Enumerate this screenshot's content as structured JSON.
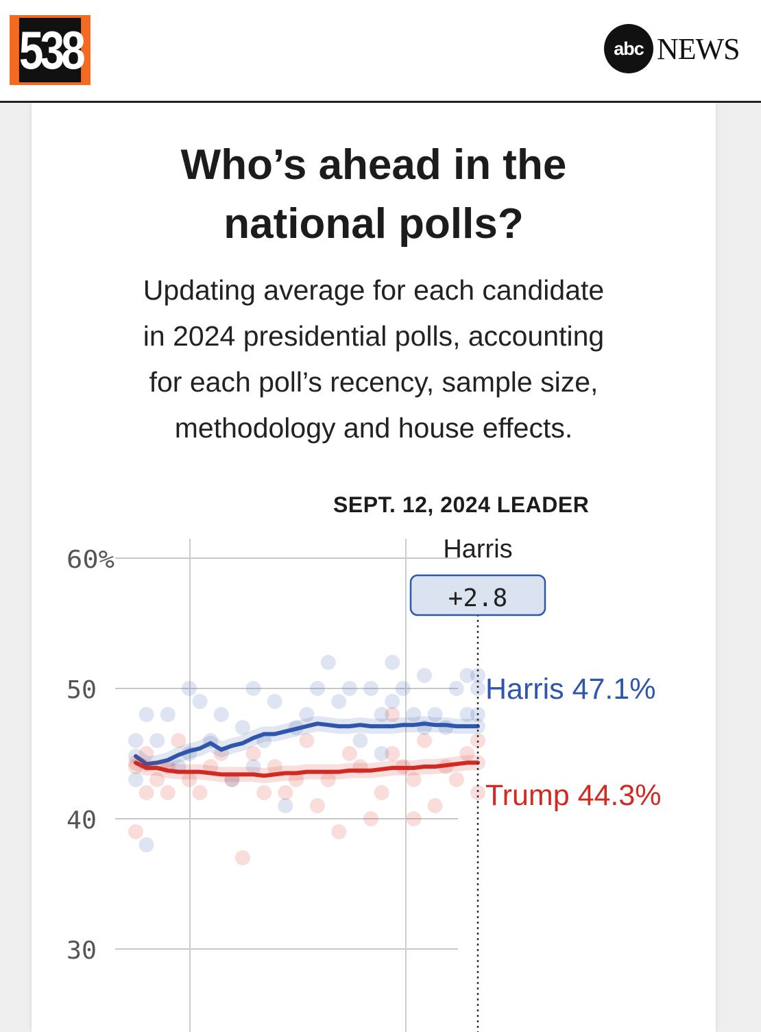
{
  "header": {
    "logo_538": "538",
    "abc_mark": "abc",
    "news_word": "NEWS"
  },
  "card": {
    "title_line1": "Who’s ahead in the",
    "title_line2": "national polls?",
    "subtitle_lines": [
      "Updating average for each candidate",
      "in 2024 presidential polls, accounting",
      "for each poll’s recency, sample size,",
      "methodology and house effects."
    ]
  },
  "colors": {
    "harris": "#2f56ab",
    "trump": "#d12a22",
    "grid": "#cccccc",
    "badge_fill": "#dce3f0"
  },
  "chart_data": {
    "type": "line",
    "leader_heading": "SEPT. 12, 2024 LEADER",
    "leader_name": "Harris",
    "leader_margin": "+2.8",
    "y_ticks": [
      "60%",
      "50",
      "40",
      "30"
    ],
    "y_tick_values": [
      60,
      50,
      40,
      30
    ],
    "ylim": [
      25,
      62
    ],
    "x_range_index": [
      0,
      32
    ],
    "series": [
      {
        "name": "Harris",
        "label": "Harris 47.1%",
        "final_value": 47.1,
        "color": "#2f56ab",
        "values": [
          44.8,
          44.2,
          44.3,
          44.5,
          44.9,
          45.2,
          45.4,
          45.8,
          45.3,
          45.6,
          45.8,
          46.2,
          46.5,
          46.5,
          46.7,
          46.9,
          47.1,
          47.3,
          47.2,
          47.1,
          47.1,
          47.2,
          47.1,
          47.1,
          47.1,
          47.2,
          47.2,
          47.3,
          47.2,
          47.2,
          47.1,
          47.1,
          47.1
        ]
      },
      {
        "name": "Trump",
        "label": "Trump 44.3%",
        "final_value": 44.3,
        "color": "#d12a22",
        "values": [
          44.3,
          43.9,
          43.9,
          43.7,
          43.6,
          43.6,
          43.6,
          43.5,
          43.4,
          43.4,
          43.4,
          43.4,
          43.3,
          43.4,
          43.5,
          43.5,
          43.6,
          43.6,
          43.6,
          43.6,
          43.7,
          43.7,
          43.7,
          43.8,
          43.9,
          43.9,
          43.9,
          44.0,
          44.0,
          44.1,
          44.2,
          44.3,
          44.3
        ]
      }
    ],
    "polls": {
      "harris": [
        [
          0,
          46
        ],
        [
          0,
          43
        ],
        [
          1,
          48
        ],
        [
          1,
          38
        ],
        [
          2,
          46
        ],
        [
          3,
          48
        ],
        [
          4,
          44
        ],
        [
          5,
          50
        ],
        [
          5,
          45
        ],
        [
          6,
          49
        ],
        [
          7,
          46
        ],
        [
          8,
          48
        ],
        [
          9,
          43
        ],
        [
          10,
          47
        ],
        [
          11,
          50
        ],
        [
          11,
          44
        ],
        [
          12,
          46
        ],
        [
          13,
          49
        ],
        [
          14,
          41
        ],
        [
          15,
          47
        ],
        [
          16,
          48
        ],
        [
          17,
          50
        ],
        [
          18,
          52
        ],
        [
          19,
          49
        ],
        [
          20,
          50
        ],
        [
          21,
          46
        ],
        [
          22,
          50
        ],
        [
          23,
          48
        ],
        [
          23,
          45
        ],
        [
          24,
          52
        ],
        [
          24,
          49
        ],
        [
          25,
          50
        ],
        [
          26,
          48
        ],
        [
          27,
          47
        ],
        [
          27,
          51
        ],
        [
          28,
          48
        ],
        [
          29,
          47
        ],
        [
          30,
          50
        ],
        [
          31,
          51
        ],
        [
          31,
          48
        ],
        [
          32,
          48
        ],
        [
          32,
          50
        ],
        [
          32,
          51
        ]
      ],
      "trump": [
        [
          0,
          39
        ],
        [
          0,
          44
        ],
        [
          1,
          45
        ],
        [
          1,
          42
        ],
        [
          2,
          43
        ],
        [
          3,
          44
        ],
        [
          3,
          42
        ],
        [
          4,
          46
        ],
        [
          5,
          43
        ],
        [
          6,
          42
        ],
        [
          7,
          44
        ],
        [
          8,
          45
        ],
        [
          9,
          43
        ],
        [
          10,
          37
        ],
        [
          11,
          45
        ],
        [
          12,
          42
        ],
        [
          13,
          44
        ],
        [
          14,
          42
        ],
        [
          15,
          43
        ],
        [
          16,
          46
        ],
        [
          17,
          41
        ],
        [
          18,
          43
        ],
        [
          19,
          39
        ],
        [
          20,
          45
        ],
        [
          21,
          44
        ],
        [
          22,
          40
        ],
        [
          23,
          42
        ],
        [
          24,
          45
        ],
        [
          25,
          44
        ],
        [
          26,
          43
        ],
        [
          27,
          46
        ],
        [
          28,
          41
        ],
        [
          29,
          44
        ],
        [
          30,
          43
        ],
        [
          31,
          45
        ],
        [
          32,
          46
        ],
        [
          32,
          42
        ],
        [
          26,
          40
        ],
        [
          24,
          48
        ]
      ]
    }
  }
}
